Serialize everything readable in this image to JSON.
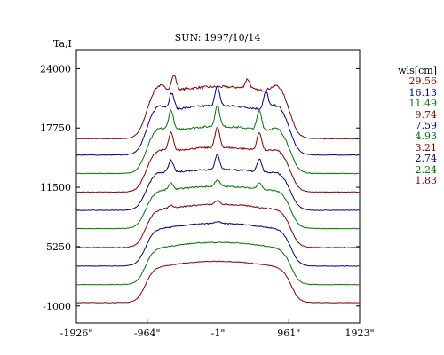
{
  "chart_data": {
    "type": "line",
    "title": "SUN: 1997/10/14",
    "ylabel": "Ta,I",
    "xlabel": "",
    "x_ticks": [
      "-1926\"",
      "-964\"",
      "-1\"",
      "961\"",
      "1923\""
    ],
    "x_tick_values": [
      -1926,
      -964,
      -1,
      961,
      1923
    ],
    "xlim": [
      -1926,
      1923
    ],
    "y_ticks": [
      "24000",
      "17750",
      "11500",
      "5250",
      "-1000"
    ],
    "y_tick_values": [
      24000,
      17750,
      11500,
      5250,
      -1000
    ],
    "ylim": [
      -2800,
      26000
    ],
    "grid": false,
    "legend": {
      "title": "wls[cm]",
      "placement": "right",
      "entries": [
        "29.56",
        "16.13",
        "11.49",
        "9.74",
        "7.59",
        "4.93",
        "3.21",
        "2.74",
        "2.24",
        "1.83"
      ]
    },
    "series": [
      {
        "name": "29.56",
        "color": "#8b0000",
        "baseline": 16620,
        "disk_top": 22100,
        "limb_shoulder": 2600,
        "peaks": [
          [
            -600,
            1600
          ],
          [
            400,
            1000
          ]
        ]
      },
      {
        "name": "16.13",
        "color": "#00008b",
        "baseline": 14900,
        "disk_top": 20100,
        "limb_shoulder": 2200,
        "peaks": [
          [
            -630,
            1700
          ],
          [
            -10,
            2000
          ],
          [
            650,
            1800
          ]
        ]
      },
      {
        "name": "11.49",
        "color": "#007700",
        "baseline": 12960,
        "disk_top": 17900,
        "limb_shoulder": 1500,
        "peaks": [
          [
            -640,
            2100
          ],
          [
            -10,
            2200
          ],
          [
            560,
            2000
          ]
        ]
      },
      {
        "name": "9.74",
        "color": "#8b0000",
        "baseline": 11000,
        "disk_top": 15700,
        "limb_shoulder": 1200,
        "peaks": [
          [
            -640,
            1900
          ],
          [
            -10,
            2100
          ],
          [
            560,
            1900
          ]
        ]
      },
      {
        "name": "7.59",
        "color": "#00008b",
        "baseline": 9080,
        "disk_top": 13400,
        "limb_shoulder": 900,
        "peaks": [
          [
            -640,
            1300
          ],
          [
            -10,
            1500
          ],
          [
            560,
            1400
          ]
        ]
      },
      {
        "name": "4.93",
        "color": "#007700",
        "baseline": 7150,
        "disk_top": 11600,
        "limb_shoulder": 600,
        "peaks": [
          [
            -640,
            700
          ],
          [
            -10,
            700
          ],
          [
            560,
            700
          ]
        ]
      },
      {
        "name": "3.21",
        "color": "#8b0000",
        "baseline": 5150,
        "disk_top": 9700,
        "limb_shoulder": 400,
        "peaks": [
          [
            -640,
            300
          ],
          [
            -10,
            400
          ]
        ]
      },
      {
        "name": "2.74",
        "color": "#00008b",
        "baseline": 3200,
        "disk_top": 7700,
        "limb_shoulder": 300,
        "peaks": [
          [
            -10,
            200
          ]
        ]
      },
      {
        "name": "2.24",
        "color": "#007700",
        "baseline": 1250,
        "disk_top": 5700,
        "limb_shoulder": 200,
        "peaks": []
      },
      {
        "name": "1.83",
        "color": "#8b0000",
        "baseline": -650,
        "disk_top": 3700,
        "limb_shoulder": 150,
        "peaks": []
      }
    ]
  }
}
